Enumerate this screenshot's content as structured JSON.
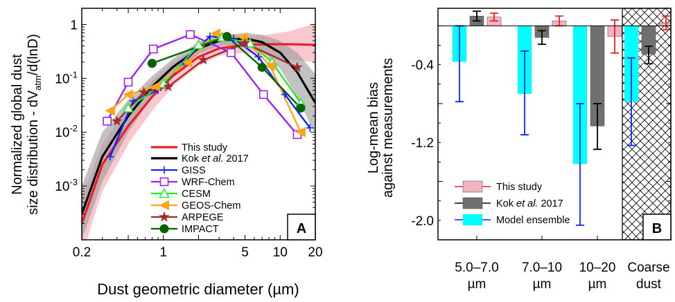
{
  "chart_data": [
    {
      "type": "line",
      "panel_label": "A",
      "xlabel": "Dust geometric diameter (µm)",
      "ylabel_line1": "Normalized global dust",
      "ylabel_line2_prefix": "size distribution - dV",
      "ylabel_line2_sub": "atm",
      "ylabel_line2_suffix": "/d(lnD)",
      "x_scale": "log",
      "y_scale": "log",
      "xlim": [
        0.2,
        20
      ],
      "ylim": [
        0.0001,
        2
      ],
      "x_ticks": [
        {
          "value": 0.2,
          "label": "0.2"
        },
        {
          "value": 1,
          "label": "1"
        },
        {
          "value": 5,
          "label": "5"
        },
        {
          "value": 10,
          "label": "10"
        },
        {
          "value": 20,
          "label": "20"
        }
      ],
      "y_ticks": [
        {
          "value": 1,
          "base": "10",
          "exp": "0"
        },
        {
          "value": 0.1,
          "base": "10",
          "exp": "-1"
        },
        {
          "value": 0.01,
          "base": "10",
          "exp": "-2"
        },
        {
          "value": 0.001,
          "base": "10",
          "exp": "-3"
        }
      ],
      "y_tick_top_label": "1",
      "legend_placement": "lower-center",
      "series": [
        {
          "name": "This study",
          "color": "#ee1c25",
          "marker": "none",
          "x": [
            0.2,
            0.3,
            0.5,
            0.8,
            1.2,
            2,
            3,
            5,
            8,
            12,
            20
          ],
          "y": [
            0.0002,
            0.0025,
            0.013,
            0.045,
            0.11,
            0.25,
            0.36,
            0.42,
            0.43,
            0.43,
            0.42
          ]
        },
        {
          "name": "Kok et al. 2017",
          "name_prefix": "Kok ",
          "name_italic": "et al.",
          "name_suffix": " 2017",
          "color": "#000000",
          "marker": "none",
          "x": [
            0.2,
            0.3,
            0.5,
            0.8,
            1.2,
            2,
            3,
            5,
            7,
            10,
            14,
            20
          ],
          "y": [
            0.0003,
            0.0035,
            0.02,
            0.07,
            0.16,
            0.36,
            0.5,
            0.55,
            0.47,
            0.3,
            0.13,
            0.035
          ]
        },
        {
          "name": "GISS",
          "color": "#0b24fb",
          "marker": "plus",
          "x": [
            0.35,
            0.55,
            0.9,
            1.5,
            2.5,
            4,
            6.5,
            11,
            18
          ],
          "y": [
            0.0035,
            0.038,
            0.06,
            0.2,
            0.6,
            0.55,
            0.25,
            0.05,
            0.012
          ]
        },
        {
          "name": "WRF-Chem",
          "color": "#a020f0",
          "marker": "square",
          "x": [
            0.33,
            0.5,
            0.82,
            1.7,
            3.8,
            7.2,
            14
          ],
          "y": [
            0.016,
            0.085,
            0.35,
            0.65,
            0.3,
            0.05,
            0.009
          ]
        },
        {
          "name": "CESM",
          "color": "#29e429",
          "marker": "triangle",
          "x": [
            0.5,
            1.0,
            2.0,
            3.2,
            5.5,
            8.5,
            15
          ],
          "y": [
            0.028,
            0.08,
            0.42,
            0.58,
            0.45,
            0.2,
            0.035
          ]
        },
        {
          "name": "GEOS-Chem",
          "color": "#ffa418",
          "marker": "left-triangle",
          "x": [
            0.35,
            0.5,
            0.85,
            1.6,
            2.8,
            4.8,
            8.2,
            15
          ],
          "y": [
            0.025,
            0.05,
            0.07,
            0.2,
            0.68,
            0.58,
            0.17,
            0.01
          ]
        },
        {
          "name": "ARPEGE",
          "color": "#a52a2a",
          "marker": "star",
          "x": [
            0.4,
            0.68,
            1.1,
            2.2,
            5,
            14
          ],
          "y": [
            0.016,
            0.055,
            0.07,
            0.22,
            0.45,
            0.16
          ]
        },
        {
          "name": "IMPACT",
          "color": "#006400",
          "marker": "circle",
          "x": [
            0.8,
            3.5,
            7,
            15
          ],
          "y": [
            0.19,
            0.6,
            0.16,
            0.028
          ]
        }
      ],
      "bands": [
        {
          "name": "This study range",
          "color": "#f4a3ad",
          "x": [
            0.2,
            0.3,
            0.5,
            0.8,
            1.2,
            2,
            3,
            5,
            8,
            12,
            20
          ],
          "lower": [
            5e-05,
            0.0008,
            0.006,
            0.025,
            0.07,
            0.17,
            0.26,
            0.3,
            0.26,
            0.22,
            0.2
          ],
          "upper": [
            0.0006,
            0.006,
            0.03,
            0.09,
            0.2,
            0.4,
            0.52,
            0.6,
            0.65,
            0.75,
            1.05
          ]
        },
        {
          "name": "Kok et al. 2017 range",
          "color": "#9a9a9a",
          "x": [
            0.2,
            0.3,
            0.5,
            0.8,
            1.2,
            2,
            3,
            5,
            7,
            10,
            14,
            20
          ],
          "lower": [
            0.0001,
            0.0012,
            0.01,
            0.045,
            0.11,
            0.28,
            0.4,
            0.42,
            0.32,
            0.15,
            0.045,
            0.009
          ],
          "upper": [
            0.001,
            0.01,
            0.04,
            0.11,
            0.23,
            0.47,
            0.62,
            0.7,
            0.64,
            0.5,
            0.3,
            0.12
          ]
        }
      ]
    },
    {
      "type": "bar",
      "panel_label": "B",
      "ylabel_line1": "Log-mean bias",
      "ylabel_line2": "against measurements",
      "ylim": [
        -2.2,
        0.18
      ],
      "y_ticks": [
        {
          "value": -0.4,
          "label": "-0.4"
        },
        {
          "value": -1.2,
          "label": "-1.2"
        },
        {
          "value": -2.0,
          "label": "-2.0"
        }
      ],
      "categories": [
        {
          "line1": "5.0–7.0",
          "line2": "µm"
        },
        {
          "line1": "7.0–10",
          "line2": "µm"
        },
        {
          "line1": "10–20",
          "line2": "µm"
        },
        {
          "line1": "Coarse",
          "line2": "dust"
        }
      ],
      "hatched_category_index": 3,
      "legend_placement": "lower-left",
      "series": [
        {
          "name": "Model ensemble",
          "fill": "#00ffff",
          "edge": "#0b24fb",
          "values": [
            -0.37,
            -0.7,
            -1.42,
            -0.78
          ],
          "err_low": [
            -0.78,
            -1.12,
            -2.05,
            -1.23
          ],
          "err_high": [
            0.0,
            -0.26,
            -0.8,
            -0.33
          ]
        },
        {
          "name": "Kok et al. 2017",
          "name_prefix": "Kok ",
          "name_italic": "et al.",
          "name_suffix": " 2017",
          "fill": "#707070",
          "edge": "#000000",
          "values": [
            0.1,
            -0.12,
            -1.03,
            -0.29
          ],
          "err_low": [
            0.05,
            -0.19,
            -1.27,
            -0.39
          ],
          "err_high": [
            0.15,
            -0.05,
            -0.8,
            -0.21
          ]
        },
        {
          "name": "This study",
          "fill": "#f4b4bf",
          "edge": "#ee1c25",
          "values": [
            0.09,
            0.05,
            -0.11,
            0.03
          ],
          "err_low": [
            0.05,
            0.0,
            -0.28,
            -0.04
          ],
          "err_high": [
            0.13,
            0.1,
            0.06,
            0.1
          ]
        }
      ]
    }
  ]
}
